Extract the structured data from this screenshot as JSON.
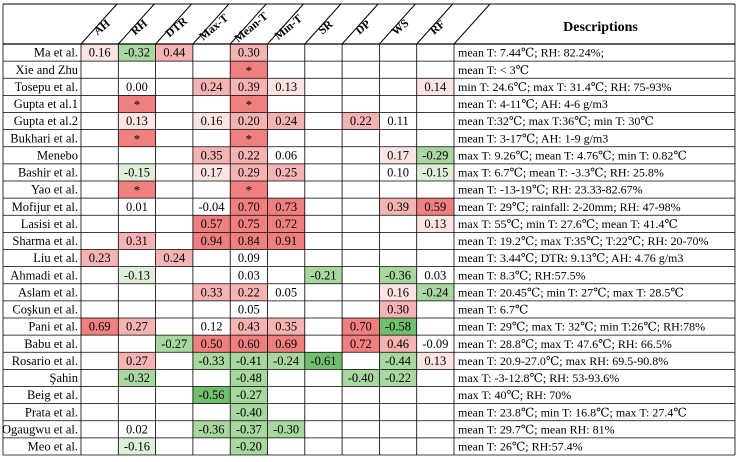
{
  "table": {
    "columns": [
      "AH",
      "RH",
      "DTR",
      "Max-T",
      "Mean-T",
      "Min-T",
      "SR",
      "DP",
      "WS",
      "RF"
    ],
    "descriptions_header": "Descriptions",
    "colors": {
      "strong_red": "#f08080",
      "mid_red": "#f6b3b3",
      "light_red": "#fce4e4",
      "strong_green": "#6fbf6f",
      "mid_green": "#a8d8a0",
      "light_green": "#dff0da",
      "grid": "#000000"
    },
    "rows": [
      {
        "study": "Ma et al.",
        "cells": [
          "0.16",
          "-0.32",
          "0.44",
          "",
          "0.30",
          "",
          "",
          "",
          "",
          ""
        ],
        "description": "mean T: 7.44℃; RH: 82.24%;"
      },
      {
        "study": "Xie and Zhu",
        "cells": [
          "",
          "",
          "",
          "",
          "*",
          "",
          "",
          "",
          "",
          ""
        ],
        "description": "mean T: < 3℃"
      },
      {
        "study": "Tosepu et al.",
        "cells": [
          "",
          "0.00",
          "",
          "0.24",
          "0.39",
          "0.13",
          "",
          "",
          "",
          "0.14"
        ],
        "description": "min T: 24.6℃; max T: 31.4℃; RH: 75-93%"
      },
      {
        "study": "Gupta et al.1",
        "cells": [
          "",
          "*",
          "",
          "",
          "*",
          "",
          "",
          "",
          "",
          ""
        ],
        "description": "mean T: 4-11℃; AH: 4-6 g/m3"
      },
      {
        "study": "Gupta et al.2",
        "cells": [
          "",
          "0.13",
          "",
          "0.16",
          "0.20",
          "0.24",
          "",
          "0.22",
          "0.11",
          ""
        ],
        "description": "mean T:32℃; max T:36℃; min T: 30℃"
      },
      {
        "study": "Bukhari et al.",
        "cells": [
          "",
          "*",
          "",
          "",
          "*",
          "",
          "",
          "",
          "",
          ""
        ],
        "description": "mean T: 3-17℃; AH: 1-9 g/m3"
      },
      {
        "study": "Menebo",
        "cells": [
          "",
          "",
          "",
          "0.35",
          "0.22",
          "0.06",
          "",
          "",
          "0.17",
          "-0.29"
        ],
        "description": "max T: 9.26℃; mean T: 4.76℃; min T: 0.82℃"
      },
      {
        "study": "Bashir et al.",
        "cells": [
          "",
          "-0.15",
          "",
          "0.17",
          "0.29",
          "0.25",
          "",
          "",
          "0.10",
          "-0.15"
        ],
        "description": "max T: 6.7℃; mean T: -3.3℃; RH: 25.8%"
      },
      {
        "study": "Yao et al.",
        "cells": [
          "",
          "*",
          "",
          "",
          "*",
          "",
          "",
          "",
          "",
          ""
        ],
        "description": "mean T: -13-19℃; RH: 23.33-82.67%"
      },
      {
        "study": "Mofijur et al.",
        "cells": [
          "",
          "0.01",
          "",
          "-0.04",
          "0.70",
          "0.73",
          "",
          "",
          "0.39",
          "0.59"
        ],
        "description": "mean T: 29℃; rainfall: 2-20mm; RH: 47-98%"
      },
      {
        "study": "Lasisi et al.",
        "cells": [
          "",
          "",
          "",
          "0.57",
          "0.75",
          "0.72",
          "",
          "",
          "",
          "0.13"
        ],
        "description": "max T: 55℃; min T: 27.6℃; mean T: 41.4℃"
      },
      {
        "study": "Sharma et al.",
        "cells": [
          "",
          "0.31",
          "",
          "0.94",
          "0.84",
          "0.91",
          "",
          "",
          "",
          ""
        ],
        "description": "mean T: 19.2℃; max T:35℃; T:22℃; RH: 20-70%"
      },
      {
        "study": "Liu et al.",
        "cells": [
          "0.23",
          "",
          "0.24",
          "",
          "0.09",
          "",
          "",
          "",
          "",
          ""
        ],
        "description": "mean T: 3.44℃; DTR: 9.13℃; AH: 4.76 g/m3"
      },
      {
        "study": "Ahmadi et al.",
        "cells": [
          "",
          "-0.13",
          "",
          "",
          "0.03",
          "",
          "-0.21",
          "",
          "-0.36",
          "0.03"
        ],
        "description": "mean T: 8.3℃; RH:57.5%"
      },
      {
        "study": "Aslam et al.",
        "cells": [
          "",
          "",
          "",
          "0.33",
          "0.22",
          "0.05",
          "",
          "",
          "0.16",
          "-0.24"
        ],
        "description": "mean T: 20.45℃; min T: 27℃; max T: 28.5℃"
      },
      {
        "study": "Coşkun et al.",
        "cells": [
          "",
          "",
          "",
          "",
          "0.05",
          "",
          "",
          "",
          "0.30",
          ""
        ],
        "description": "mean T: 6.7℃"
      },
      {
        "study": "Pani et al.",
        "cells": [
          "0.69",
          "0.27",
          "",
          "0.12",
          "0.43",
          "0.35",
          "",
          "0.70",
          "-0.58",
          ""
        ],
        "description": "mean T: 29℃; max T: 32℃; min T:26℃; RH:78%"
      },
      {
        "study": "Babu et al.",
        "cells": [
          "",
          "",
          "-0.27",
          "0.50",
          "0.60",
          "0.69",
          "",
          "0.72",
          "0.46",
          "-0.09"
        ],
        "description": "mean T: 28.8℃; max T: 47.6℃; RH: 66.5%"
      },
      {
        "study": "Rosario et al.",
        "cells": [
          "",
          "0.27",
          "",
          "-0.33",
          "-0.41",
          "-0.24",
          "-0.61",
          "",
          "-0.44",
          "0.13"
        ],
        "description": "mean T: 20.9-27.0℃; max RH: 69.5-90.8%"
      },
      {
        "study": "Şahin",
        "cells": [
          "",
          "-0.32",
          "",
          "",
          "-0.48",
          "",
          "",
          "-0.40",
          "-0.22",
          ""
        ],
        "description": "max T: -3-12.8℃; RH: 53-93.6%"
      },
      {
        "study": "Beig et al.",
        "cells": [
          "",
          "",
          "",
          "-0.56",
          "-0.27",
          "",
          "",
          "",
          "",
          ""
        ],
        "description": "max T: 40℃; RH: 70%"
      },
      {
        "study": "Prata et al.",
        "cells": [
          "",
          "",
          "",
          "",
          "-0.40",
          "",
          "",
          "",
          "",
          ""
        ],
        "description": "mean T: 23.8℃; min T: 16.8℃; max T: 27.4℃"
      },
      {
        "study": "Ogaugwu et al.",
        "cells": [
          "",
          "0.02",
          "",
          "-0.36",
          "-0.37",
          "-0.30",
          "",
          "",
          "",
          ""
        ],
        "description": "mean T: 29.7℃; mean RH: 81%"
      },
      {
        "study": "Meo et al.",
        "cells": [
          "",
          "-0.16",
          "",
          "",
          "-0.20",
          "",
          "",
          "",
          "",
          ""
        ],
        "description": "mean T: 26℃; RH:57.4%"
      }
    ]
  }
}
